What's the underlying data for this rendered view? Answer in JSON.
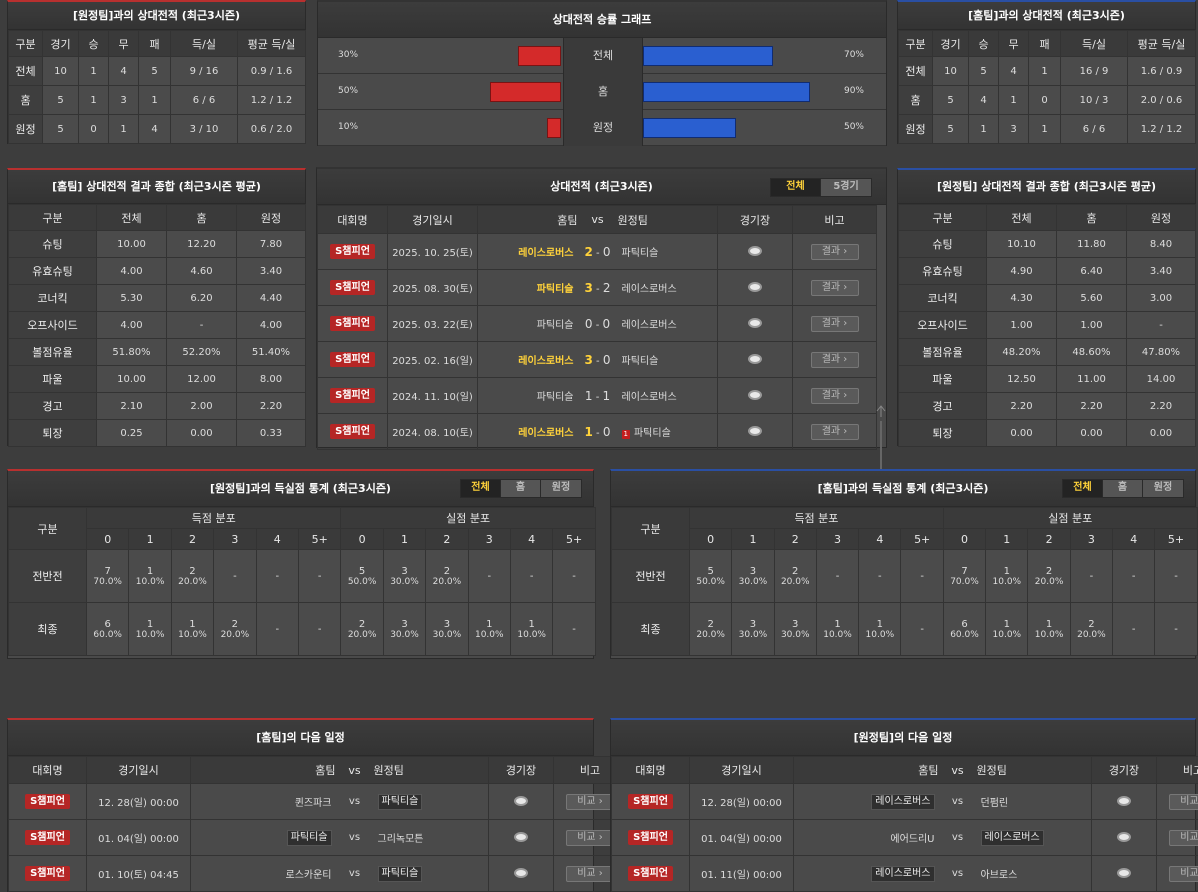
{
  "away_h2h": {
    "title": "[원정팀]과의 상대전적 (최근3시즌)",
    "headers": [
      "구분",
      "경기",
      "승",
      "무",
      "패",
      "득/실",
      "평균 득/실"
    ],
    "rows": [
      [
        "전체",
        "10",
        "1",
        "4",
        "5",
        "9 / 16",
        "0.9 / 1.6"
      ],
      [
        "홈",
        "5",
        "1",
        "3",
        "1",
        "6 / 6",
        "1.2 / 1.2"
      ],
      [
        "원정",
        "5",
        "0",
        "1",
        "4",
        "3 / 10",
        "0.6 / 2.0"
      ]
    ]
  },
  "graph": {
    "title": "상대전적 승률 그래프",
    "rows": [
      {
        "label": "전체",
        "left": "30%",
        "right": "70%",
        "lv": 30,
        "rv": 70
      },
      {
        "label": "홈",
        "left": "50%",
        "right": "90%",
        "lv": 50,
        "rv": 90
      },
      {
        "label": "원정",
        "left": "10%",
        "right": "50%",
        "lv": 10,
        "rv": 50
      }
    ]
  },
  "home_h2h": {
    "title": "[홈팀]과의 상대전적 (최근3시즌)",
    "headers": [
      "구분",
      "경기",
      "승",
      "무",
      "패",
      "득/실",
      "평균 득/실"
    ],
    "rows": [
      [
        "전체",
        "10",
        "5",
        "4",
        "1",
        "16 / 9",
        "1.6 / 0.9"
      ],
      [
        "홈",
        "5",
        "4",
        "1",
        "0",
        "10 / 3",
        "2.0 / 0.6"
      ],
      [
        "원정",
        "5",
        "1",
        "3",
        "1",
        "6 / 6",
        "1.2 / 1.2"
      ]
    ]
  },
  "home_summary": {
    "title": "[홈팀] 상대전적 결과 종합 (최근3시즌 평균)",
    "headers": [
      "구분",
      "전체",
      "홈",
      "원정"
    ],
    "rows": [
      [
        "슈팅",
        "10.00",
        "12.20",
        "7.80"
      ],
      [
        "유효슈팅",
        "4.00",
        "4.60",
        "3.40"
      ],
      [
        "코너킥",
        "5.30",
        "6.20",
        "4.40"
      ],
      [
        "오프사이드",
        "4.00",
        "-",
        "4.00"
      ],
      [
        "볼점유율",
        "51.80%",
        "52.20%",
        "51.40%"
      ],
      [
        "파울",
        "10.00",
        "12.00",
        "8.00"
      ],
      [
        "경고",
        "2.10",
        "2.00",
        "2.20"
      ],
      [
        "퇴장",
        "0.25",
        "0.00",
        "0.33"
      ]
    ]
  },
  "away_summary": {
    "title": "[원정팀] 상대전적 결과 종합 (최근3시즌 평균)",
    "headers": [
      "구분",
      "전체",
      "홈",
      "원정"
    ],
    "rows": [
      [
        "슈팅",
        "10.10",
        "11.80",
        "8.40"
      ],
      [
        "유효슈팅",
        "4.90",
        "6.40",
        "3.40"
      ],
      [
        "코너킥",
        "4.30",
        "5.60",
        "3.00"
      ],
      [
        "오프사이드",
        "1.00",
        "1.00",
        "-"
      ],
      [
        "볼점유율",
        "48.20%",
        "48.60%",
        "47.80%"
      ],
      [
        "파울",
        "12.50",
        "11.00",
        "14.00"
      ],
      [
        "경고",
        "2.20",
        "2.20",
        "2.20"
      ],
      [
        "퇴장",
        "0.00",
        "0.00",
        "0.00"
      ]
    ]
  },
  "matches": {
    "title": "상대전적 (최근3시즌)",
    "tabs": [
      "전체",
      "5경기"
    ],
    "headers": [
      "대회명",
      "경기일시",
      "홈팀",
      "vs",
      "원정팀",
      "경기장",
      "비고"
    ],
    "result_label": "결과",
    "rows": [
      {
        "league": "S챔피언",
        "date": "2025. 10. 25(토)",
        "home": "레이스로버스",
        "hs": "2",
        "as": "0",
        "away": "파틱티슬",
        "win": "home",
        "card": ""
      },
      {
        "league": "S챔피언",
        "date": "2025. 08. 30(토)",
        "home": "파틱티슬",
        "hs": "3",
        "as": "2",
        "away": "레이스로버스",
        "win": "home",
        "card": ""
      },
      {
        "league": "S챔피언",
        "date": "2025. 03. 22(토)",
        "home": "파틱티슬",
        "hs": "0",
        "as": "0",
        "away": "레이스로버스",
        "win": "",
        "card": ""
      },
      {
        "league": "S챔피언",
        "date": "2025. 02. 16(일)",
        "home": "레이스로버스",
        "hs": "3",
        "as": "0",
        "away": "파틱티슬",
        "win": "home",
        "card": ""
      },
      {
        "league": "S챔피언",
        "date": "2024. 11. 10(일)",
        "home": "파틱티슬",
        "hs": "1",
        "as": "1",
        "away": "레이스로버스",
        "win": "",
        "card": ""
      },
      {
        "league": "S챔피언",
        "date": "2024. 08. 10(토)",
        "home": "레이스로버스",
        "hs": "1",
        "as": "0",
        "away": "파틱티슬",
        "win": "home",
        "card": "1"
      }
    ]
  },
  "away_goals": {
    "title": "[원정팀]과의 득실점 통계 (최근3시즌)",
    "tabs": [
      "전체",
      "홈",
      "원정"
    ],
    "col_label": "구분",
    "group1": "득점 분포",
    "group2": "실점 분포",
    "buckets": [
      "0",
      "1",
      "2",
      "3",
      "4",
      "5+"
    ],
    "rows": [
      {
        "label": "전반전",
        "cells": [
          [
            "7",
            "70.0%"
          ],
          [
            "1",
            "10.0%"
          ],
          [
            "2",
            "20.0%"
          ],
          [
            "-",
            ""
          ],
          [
            "-",
            ""
          ],
          [
            "-",
            ""
          ],
          [
            "5",
            "50.0%"
          ],
          [
            "3",
            "30.0%"
          ],
          [
            "2",
            "20.0%"
          ],
          [
            "-",
            ""
          ],
          [
            "-",
            ""
          ],
          [
            "-",
            ""
          ]
        ]
      },
      {
        "label": "최종",
        "cells": [
          [
            "6",
            "60.0%"
          ],
          [
            "1",
            "10.0%"
          ],
          [
            "1",
            "10.0%"
          ],
          [
            "2",
            "20.0%"
          ],
          [
            "-",
            ""
          ],
          [
            "-",
            ""
          ],
          [
            "2",
            "20.0%"
          ],
          [
            "3",
            "30.0%"
          ],
          [
            "3",
            "30.0%"
          ],
          [
            "1",
            "10.0%"
          ],
          [
            "1",
            "10.0%"
          ],
          [
            "-",
            ""
          ]
        ]
      }
    ]
  },
  "home_goals": {
    "title": "[홈팀]과의 득실점 통계 (최근3시즌)",
    "tabs": [
      "전체",
      "홈",
      "원정"
    ],
    "col_label": "구분",
    "group1": "득점 분포",
    "group2": "실점 분포",
    "buckets": [
      "0",
      "1",
      "2",
      "3",
      "4",
      "5+"
    ],
    "rows": [
      {
        "label": "전반전",
        "cells": [
          [
            "5",
            "50.0%"
          ],
          [
            "3",
            "30.0%"
          ],
          [
            "2",
            "20.0%"
          ],
          [
            "-",
            ""
          ],
          [
            "-",
            ""
          ],
          [
            "-",
            ""
          ],
          [
            "7",
            "70.0%"
          ],
          [
            "1",
            "10.0%"
          ],
          [
            "2",
            "20.0%"
          ],
          [
            "-",
            ""
          ],
          [
            "-",
            ""
          ],
          [
            "-",
            ""
          ]
        ]
      },
      {
        "label": "최종",
        "cells": [
          [
            "2",
            "20.0%"
          ],
          [
            "3",
            "30.0%"
          ],
          [
            "3",
            "30.0%"
          ],
          [
            "1",
            "10.0%"
          ],
          [
            "1",
            "10.0%"
          ],
          [
            "-",
            ""
          ],
          [
            "6",
            "60.0%"
          ],
          [
            "1",
            "10.0%"
          ],
          [
            "1",
            "10.0%"
          ],
          [
            "2",
            "20.0%"
          ],
          [
            "-",
            ""
          ],
          [
            "-",
            ""
          ]
        ]
      }
    ]
  },
  "home_next": {
    "title": "[홈팀]의 다음 일정",
    "headers": [
      "대회명",
      "경기일시",
      "홈팀",
      "vs",
      "원정팀",
      "경기장",
      "비고"
    ],
    "btn": "비교",
    "rows": [
      {
        "league": "S챔피언",
        "date": "12. 28(일) 00:00",
        "home": "퀸즈파크",
        "away": "파틱티슬",
        "tag": "away"
      },
      {
        "league": "S챔피언",
        "date": "01. 04(일) 00:00",
        "home": "파틱티슬",
        "away": "그리녹모튼",
        "tag": "home"
      },
      {
        "league": "S챔피언",
        "date": "01. 10(토) 04:45",
        "home": "로스카운티",
        "away": "파틱티슬",
        "tag": "away"
      }
    ]
  },
  "away_next": {
    "title": "[원정팀]의 다음 일정",
    "headers": [
      "대회명",
      "경기일시",
      "홈팀",
      "vs",
      "원정팀",
      "경기장",
      "비고"
    ],
    "btn": "비교",
    "rows": [
      {
        "league": "S챔피언",
        "date": "12. 28(일) 00:00",
        "home": "레이스로버스",
        "away": "던펌린",
        "tag": "home"
      },
      {
        "league": "S챔피언",
        "date": "01. 04(일) 00:00",
        "home": "에어드리U",
        "away": "레이스로버스",
        "tag": "away"
      },
      {
        "league": "S챔피언",
        "date": "01. 11(일) 00:00",
        "home": "레이스로버스",
        "away": "아브로스",
        "tag": "home"
      }
    ]
  }
}
